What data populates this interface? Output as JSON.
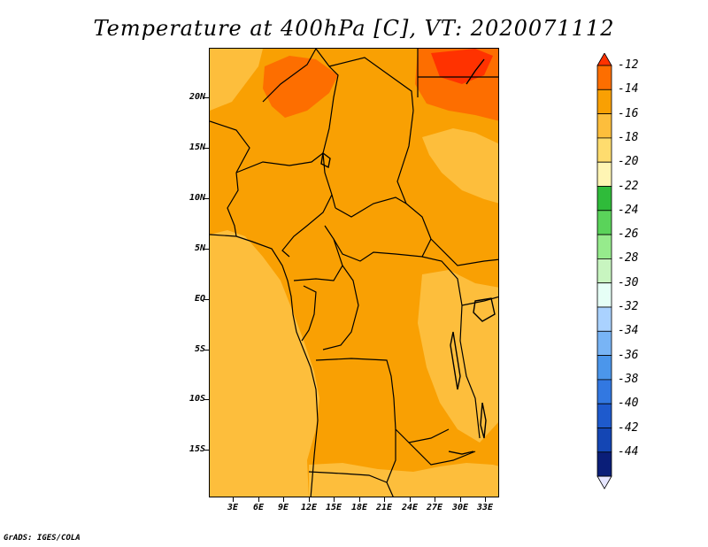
{
  "title": "Temperature at 400hPa [C], VT: 2020071112",
  "footer": "GrADS: IGES/COLA",
  "map": {
    "variable": "Temperature",
    "level": "400hPa",
    "units": "C",
    "valid_time": "2020071112",
    "y_axis_labels": [
      "20N",
      "15N",
      "10N",
      "5N",
      "EQ",
      "5S",
      "10S",
      "15S"
    ],
    "x_axis_labels": [
      "3E",
      "6E",
      "9E",
      "12E",
      "15E",
      "18E",
      "21E",
      "24E",
      "27E",
      "30E",
      "33E"
    ]
  },
  "colorbar": {
    "labels": [
      "-12",
      "-14",
      "-16",
      "-18",
      "-20",
      "-22",
      "-24",
      "-26",
      "-28",
      "-30",
      "-32",
      "-34",
      "-36",
      "-38",
      "-40",
      "-42",
      "-44"
    ],
    "colors": [
      "#ff3200",
      "#fd6e00",
      "#f9a003",
      "#fdbe3c",
      "#fedc6e",
      "#fff5b4",
      "#2fbb3a",
      "#5ad35a",
      "#96eb8c",
      "#c8f5c0",
      "#e6fff6",
      "#aad2ff",
      "#78b4f5",
      "#4b96eb",
      "#3278e1",
      "#1e5acd",
      "#1446b4",
      "#0a1e78",
      "#e6e6ff"
    ]
  }
}
